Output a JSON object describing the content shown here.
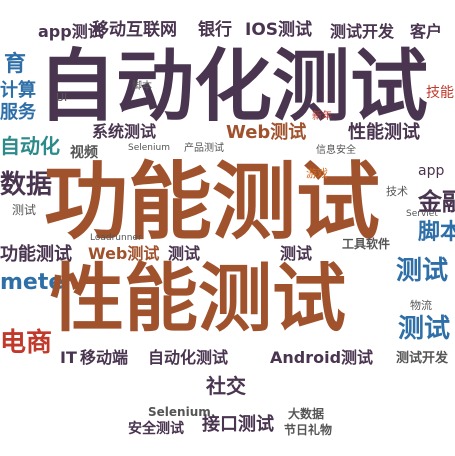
{
  "palette": {
    "dark": "#4a3550",
    "brown": "#a0522d",
    "blue": "#2f6fa8",
    "teal": "#2b8a8a",
    "red": "#c0392b",
    "gray": "#555555",
    "orange": "#d2691e"
  },
  "words": {
    "automation_big": "自动化测试",
    "functional_big": "功能测试",
    "performance_big": "性能测试",
    "app_test": "app测试",
    "mobile_internet": "移动互联网",
    "bank": "银行",
    "ios_test": "IOS测试",
    "test_dev": "测试开发",
    "customer": "客户",
    "education": "育",
    "compute": "计算",
    "service": "服务",
    "automation": "自动化",
    "system_test": "系统测试",
    "web_test": "Web测试",
    "performance_test": "性能测试",
    "video": "视频",
    "data": "数据",
    "finance": "金融",
    "script": "脚本",
    "functional_test": "功能测试",
    "web_test_2": "Web测试",
    "test_a": "测试",
    "test_b": "测试",
    "test_c": "测试",
    "tool_software": "工具软件",
    "meter": "meter",
    "ecommerce": "电商",
    "mobile_end": "移动端",
    "automation_test": "自动化测试",
    "android_test": "Android测试",
    "social": "社交",
    "selenium": "Selenium",
    "big_data": "大数据",
    "security_test": "安全测试",
    "interface_test": "接口测试",
    "holiday_gift": "节日礼物",
    "test_dev_2": "测试开发",
    "game": "游戏",
    "it": "IT",
    "skill": "技能",
    "ui": "UI",
    "selenium_small": "Selenium",
    "appium": "app",
    "test_small": "测试",
    "tech": "技术",
    "product": "产品测试",
    "info_security": "信息安全",
    "new_year": "新年",
    "script_small": "脚本",
    "logistics": "物流",
    "loadrunner": "Loadrunner",
    "servlet": "Servlet"
  }
}
